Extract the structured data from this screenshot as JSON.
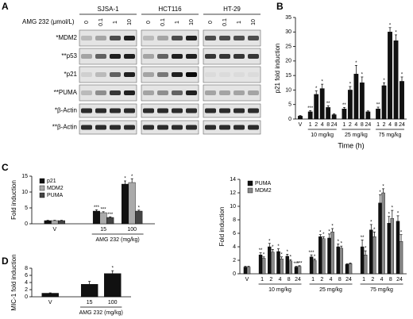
{
  "panels": [
    "A",
    "B",
    "C",
    "D"
  ],
  "blot": {
    "dose_label": "AMG 232 (μmol/L)",
    "cell_lines": [
      {
        "name": "SJSA-1",
        "doses": [
          "0",
          "0.1",
          "1",
          "10"
        ]
      },
      {
        "name": "HCT116",
        "doses": [
          "0",
          "0.1",
          "1",
          "10"
        ]
      },
      {
        "name": "HT-29",
        "doses": [
          "0",
          "0.1",
          "1",
          "10"
        ]
      }
    ],
    "rows": [
      "*MDM2",
      "**p53",
      "*p21",
      "**PUMA",
      "*β-Actin",
      "**β-Actin"
    ]
  },
  "chart_data": [
    {
      "type": "bar",
      "ylabel": "p21 fold induction",
      "xlabel": "Time (h)",
      "ylim": [
        0,
        35
      ],
      "yticks": [
        0,
        5,
        10,
        15,
        20,
        25,
        30,
        35
      ],
      "series": [
        {
          "color": "#111111"
        }
      ],
      "groups": [
        {
          "categories": [
            "V"
          ],
          "values": [
            [
              1
            ]
          ],
          "errors": [
            [
              0.2
            ]
          ],
          "stars": [
            [
              null
            ]
          ]
        },
        {
          "label": "10 mg/kg",
          "categories": [
            "1",
            "2",
            "4",
            "8",
            "24"
          ],
          "values": [
            [
              2.5,
              8.5,
              10.5,
              4,
              1.5
            ]
          ],
          "errors": [
            [
              0.4,
              1.2,
              1.5,
              0.6,
              0.3
            ]
          ],
          "stars": [
            [
              "***",
              "*",
              "*",
              "**",
              null
            ]
          ]
        },
        {
          "label": "25 mg/kg",
          "categories": [
            "1",
            "2",
            "4",
            "8",
            "24"
          ],
          "values": [
            [
              3.5,
              10,
              15.5,
              12.5,
              2.5
            ]
          ],
          "errors": [
            [
              0.5,
              1.2,
              3,
              2,
              0.3
            ]
          ],
          "stars": [
            [
              "**",
              "*",
              "*",
              "*",
              null
            ]
          ]
        },
        {
          "label": "75 mg/kg",
          "categories": [
            "1",
            "2",
            "4",
            "8",
            "24"
          ],
          "values": [
            [
              3.5,
              11.5,
              30,
              27,
              13
            ]
          ],
          "errors": [
            [
              0.6,
              1,
              1.5,
              2,
              1.5
            ]
          ],
          "stars": [
            [
              "**",
              "*",
              "*",
              "*",
              "*"
            ]
          ]
        }
      ]
    },
    {
      "type": "bar",
      "ylabel": "Fold induction",
      "ylim": [
        0,
        15
      ],
      "yticks": [
        0,
        5,
        10,
        15
      ],
      "series": [
        {
          "name": "p21",
          "color": "#111111"
        },
        {
          "name": "MDM2",
          "color": "#aaaaaa"
        },
        {
          "name": "PUMA",
          "color": "#444444"
        }
      ],
      "groups": [
        {
          "categories": [
            "V"
          ],
          "values": [
            [
              1
            ],
            [
              1
            ],
            [
              1
            ]
          ],
          "errors": [
            [
              0.1
            ],
            [
              0.1
            ],
            [
              0.1
            ]
          ],
          "stars": [
            [
              null
            ],
            [
              null
            ],
            [
              null
            ]
          ]
        },
        {
          "label": "AMG 232 (mg/kg)",
          "categories": [
            "15",
            "100"
          ],
          "values": [
            [
              4,
              12.5
            ],
            [
              3.5,
              13
            ],
            [
              2,
              4
            ]
          ],
          "errors": [
            [
              0.4,
              1
            ],
            [
              0.3,
              1.2
            ],
            [
              0.2,
              0.3
            ]
          ],
          "stars": [
            [
              "***",
              "*"
            ],
            [
              "***",
              "*"
            ],
            [
              "***",
              "*"
            ]
          ]
        }
      ]
    },
    {
      "type": "bar",
      "ylabel": "MIC-1 fold induction",
      "ylim": [
        0,
        8
      ],
      "yticks": [
        0,
        2,
        4,
        6,
        8
      ],
      "series": [
        {
          "color": "#111111"
        }
      ],
      "groups": [
        {
          "categories": [
            "V"
          ],
          "values": [
            [
              1
            ]
          ],
          "errors": [
            [
              0.1
            ]
          ],
          "stars": [
            [
              null
            ]
          ]
        },
        {
          "label": "AMG 232 (mg/kg)",
          "categories": [
            "15",
            "100"
          ],
          "values": [
            [
              3.5,
              6.5
            ]
          ],
          "errors": [
            [
              0.8,
              0.8
            ]
          ],
          "stars": [
            [
              null,
              "*"
            ]
          ]
        }
      ]
    },
    {
      "type": "bar",
      "ylabel": "Fold induction",
      "ylim": [
        0,
        14
      ],
      "yticks": [
        0,
        2,
        4,
        6,
        8,
        10,
        12,
        14
      ],
      "series": [
        {
          "name": "PUMA",
          "color": "#111111"
        },
        {
          "name": "MDM2",
          "color": "#888888"
        }
      ],
      "groups": [
        {
          "categories": [
            "V"
          ],
          "values": [
            [
              1
            ],
            [
              1
            ]
          ],
          "errors": [
            [
              0.1
            ],
            [
              0.1
            ]
          ],
          "stars": [
            [
              null
            ],
            [
              null
            ]
          ]
        },
        {
          "label": "10 mg/kg",
          "categories": [
            "1",
            "2",
            "4",
            "8",
            "24"
          ],
          "values": [
            [
              2.8,
              4,
              3.3,
              2.6,
              1
            ],
            [
              2.3,
              3.2,
              2.2,
              1.9,
              1.1
            ]
          ],
          "errors": [
            [
              0.3,
              0.5,
              0.4,
              0.3,
              0.1
            ],
            [
              0.2,
              0.4,
              0.3,
              0.2,
              0.1
            ]
          ],
          "stars": [
            [
              "**",
              "*",
              "*",
              "*",
              "***"
            ],
            [
              "*",
              "*",
              "*",
              "*",
              "***"
            ]
          ]
        },
        {
          "label": "25 mg/kg",
          "categories": [
            "1",
            "2",
            "4",
            "8",
            "24"
          ],
          "values": [
            [
              2.5,
              5.5,
              5.3,
              4,
              1.4
            ],
            [
              2,
              5.2,
              6.2,
              3.8,
              1.5
            ]
          ],
          "errors": [
            [
              0.3,
              0.3,
              0.6,
              0.4,
              0.1
            ],
            [
              0.2,
              0.3,
              0.5,
              0.3,
              0.1
            ]
          ],
          "stars": [
            [
              "***",
              "*",
              "*",
              "*",
              null
            ],
            [
              "*",
              "*",
              "*",
              "*",
              null
            ]
          ]
        },
        {
          "label": "75 mg/kg",
          "categories": [
            "1",
            "2",
            "4",
            "8",
            "24"
          ],
          "values": [
            [
              4,
              6.5,
              10.5,
              7.5,
              7.8
            ],
            [
              2.8,
              5.5,
              12,
              8.2,
              4.8
            ]
          ],
          "errors": [
            [
              1,
              0.8,
              1.2,
              1,
              0.8
            ],
            [
              0.6,
              0.7,
              0.6,
              1.2,
              1
            ]
          ],
          "stars": [
            [
              "**",
              "*",
              "*",
              "*",
              "*"
            ],
            [
              "*",
              "*",
              "*",
              "*",
              "*"
            ]
          ]
        }
      ]
    }
  ]
}
